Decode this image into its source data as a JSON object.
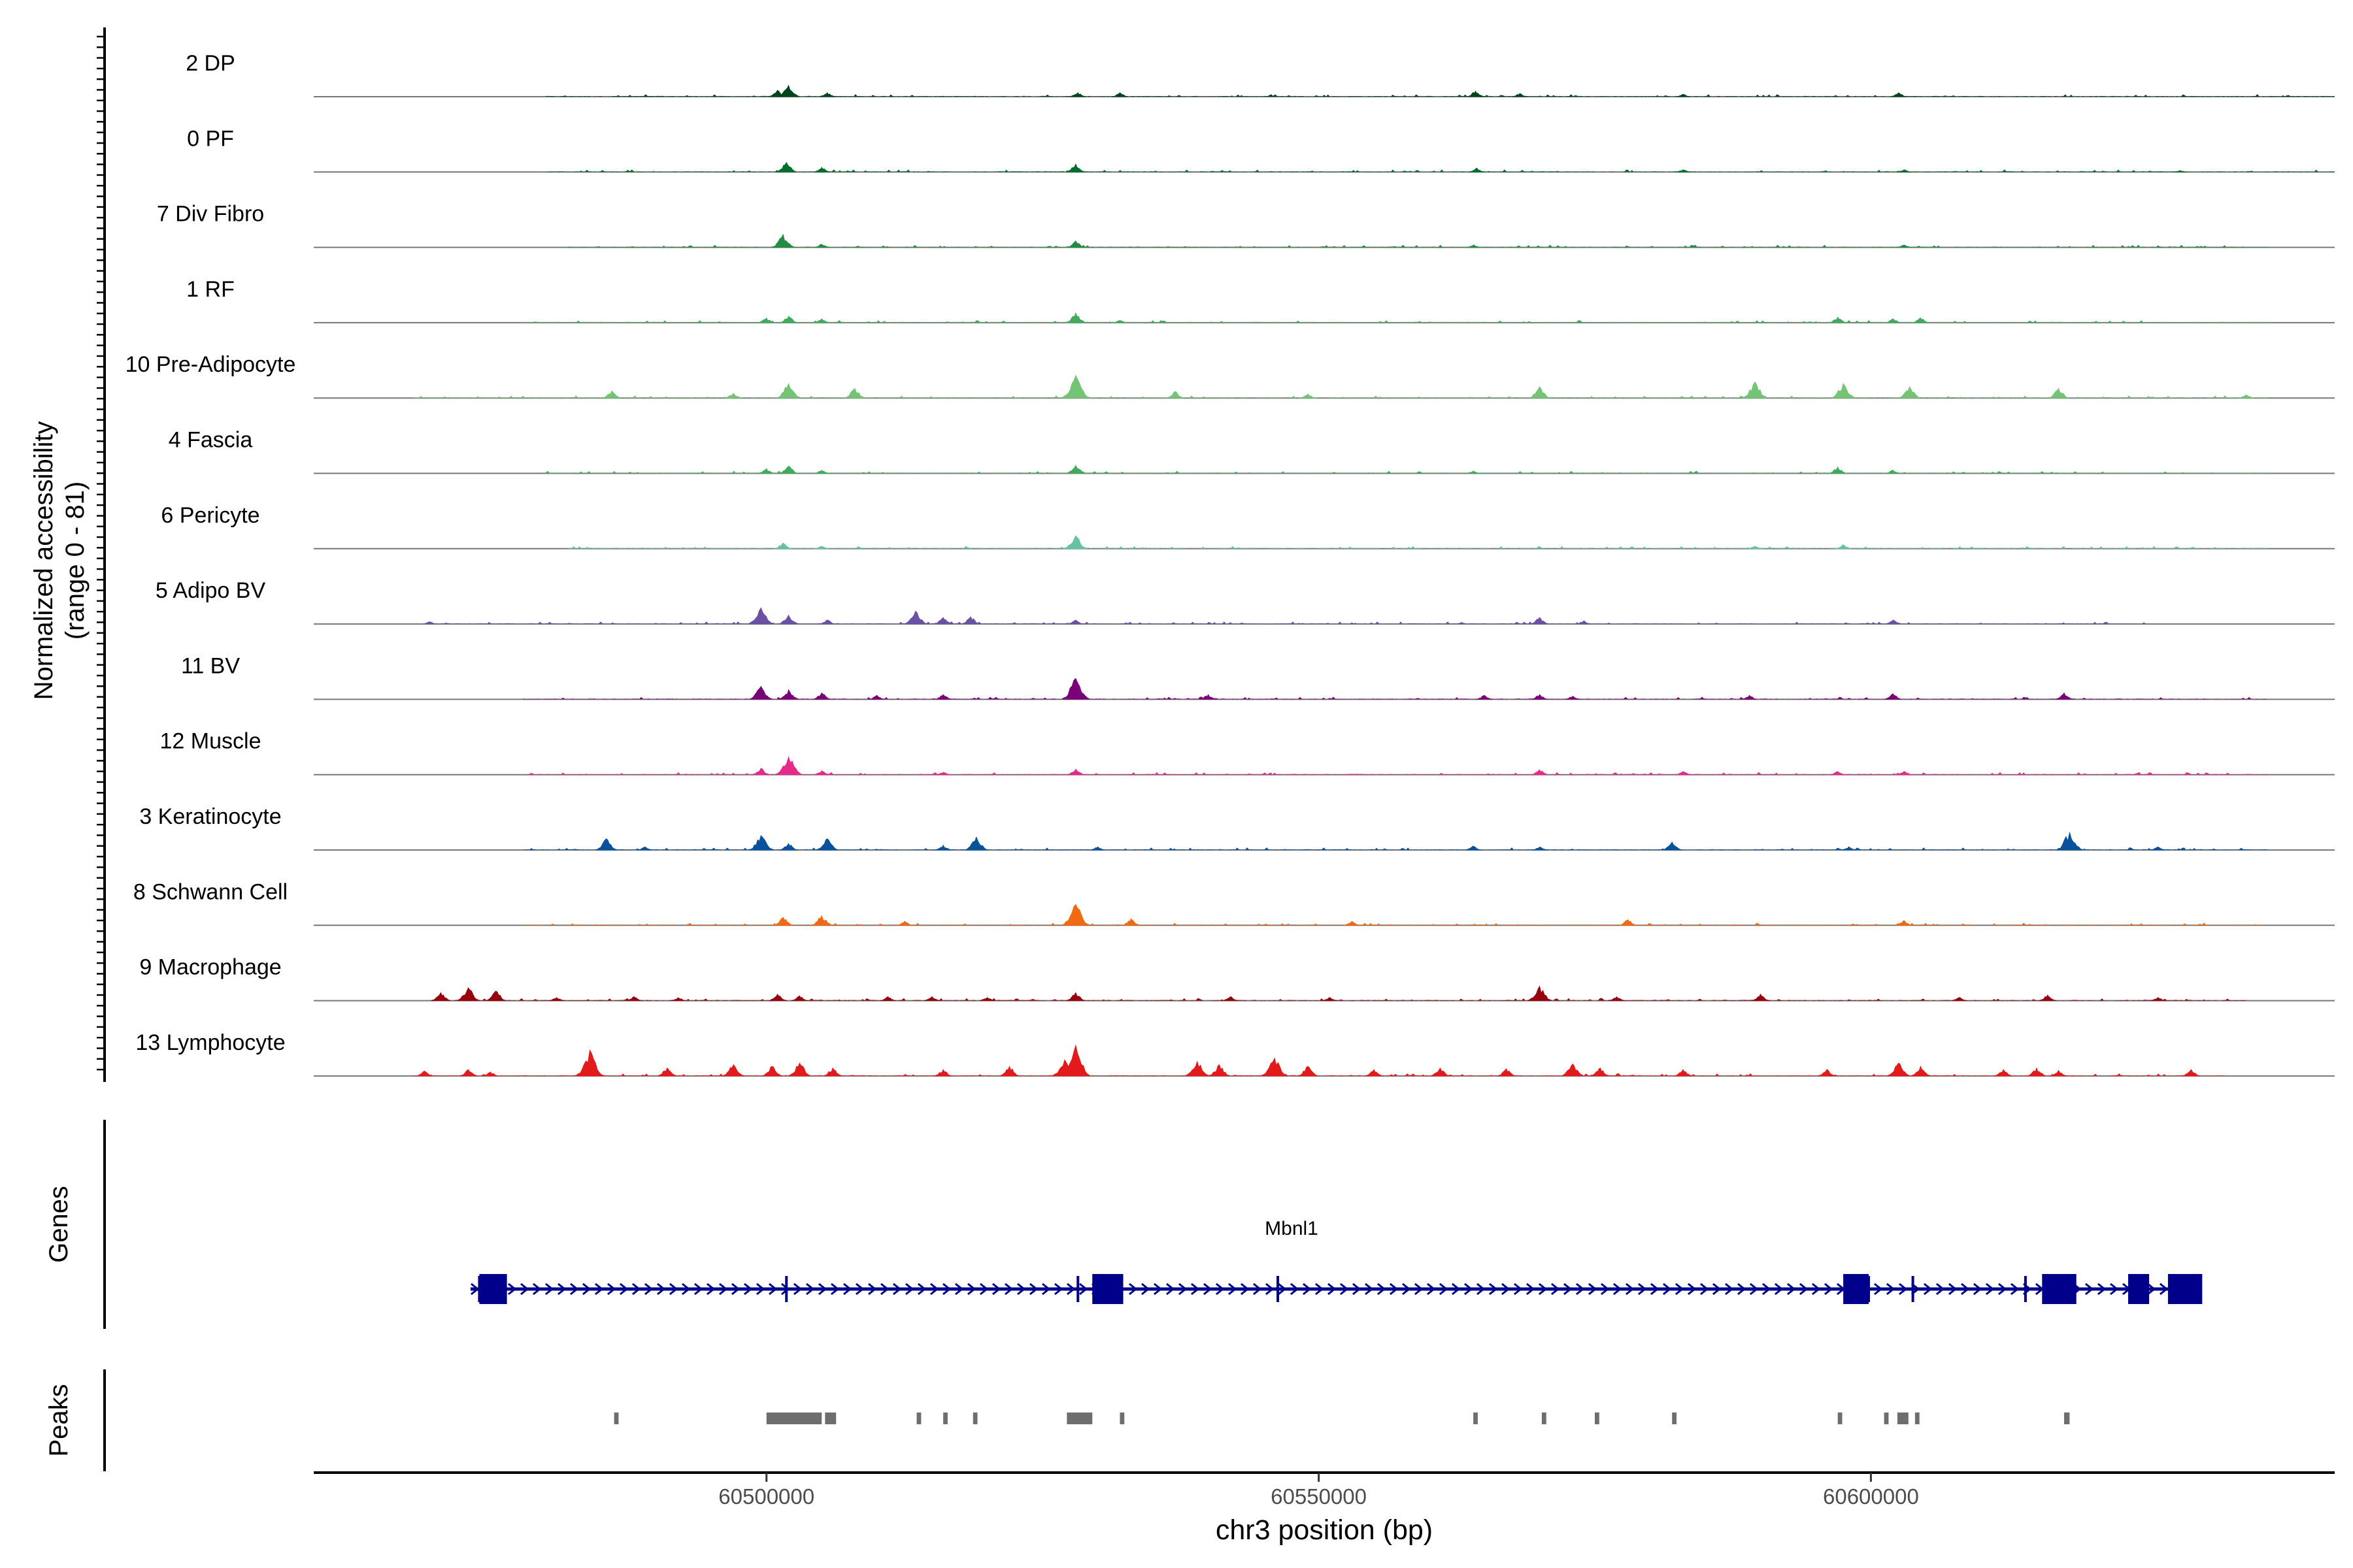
{
  "chart_data": {
    "type": "area",
    "title": "",
    "ylabel_line1": "Normalized accessibility",
    "ylabel_line2": "(range 0 - 81)",
    "xlabel": "chr3 position (bp)",
    "xlim": [
      60459000,
      60642000
    ],
    "x_ticks": [
      60500000,
      60550000,
      60600000
    ],
    "x_tick_labels": [
      "60500000",
      "60550000",
      "60600000"
    ],
    "track_ylim": [
      0,
      81
    ],
    "tracks": [
      {
        "name": "2 DP",
        "color": "#00441b",
        "range": [
          60480000,
          60642000
        ],
        "peaks": [
          [
            60502000,
            14
          ],
          [
            60501000,
            8
          ],
          [
            60505500,
            5
          ],
          [
            60528200,
            5
          ],
          [
            60532000,
            5
          ],
          [
            60564200,
            7
          ],
          [
            60568200,
            4
          ],
          [
            60583000,
            3
          ],
          [
            60602500,
            5
          ]
        ]
      },
      {
        "name": "0 PF",
        "color": "#006d2c",
        "range": [
          60480000,
          60642000
        ],
        "peaks": [
          [
            60501800,
            12
          ],
          [
            60505000,
            6
          ],
          [
            60528000,
            10
          ],
          [
            60564300,
            5
          ],
          [
            60583000,
            3
          ],
          [
            60603000,
            3
          ],
          [
            60628000,
            2
          ]
        ]
      },
      {
        "name": "7 Div Fibro",
        "color": "#238b45",
        "range": [
          60482000,
          60636000
        ],
        "peaks": [
          [
            60501500,
            16
          ],
          [
            60505000,
            4
          ],
          [
            60528000,
            8
          ],
          [
            60564000,
            3
          ],
          [
            60603000,
            3
          ]
        ]
      },
      {
        "name": "1 RF",
        "color": "#41ab5d",
        "range": [
          60478000,
          60636000
        ],
        "peaks": [
          [
            60500000,
            6
          ],
          [
            60502000,
            8
          ],
          [
            60505000,
            5
          ],
          [
            60528000,
            12
          ],
          [
            60532000,
            3
          ],
          [
            60597000,
            7
          ],
          [
            60602000,
            5
          ],
          [
            60604500,
            6
          ]
        ]
      },
      {
        "name": "10 Pre-Adipocyte",
        "color": "#74c476",
        "range": [
          60468000,
          60636000
        ],
        "peaks": [
          [
            60486000,
            9
          ],
          [
            60497000,
            6
          ],
          [
            60502000,
            18
          ],
          [
            60508000,
            12
          ],
          [
            60528000,
            28
          ],
          [
            60537000,
            8
          ],
          [
            60549000,
            5
          ],
          [
            60570000,
            14
          ],
          [
            60589500,
            20
          ],
          [
            60597500,
            18
          ],
          [
            60603500,
            14
          ],
          [
            60617000,
            12
          ],
          [
            60634000,
            4
          ]
        ]
      },
      {
        "name": "4 Fascia",
        "color": "#41ab5d",
        "range": [
          60480000,
          60636000
        ],
        "peaks": [
          [
            60500000,
            6
          ],
          [
            60502000,
            9
          ],
          [
            60505000,
            4
          ],
          [
            60528000,
            10
          ],
          [
            60564000,
            3
          ],
          [
            60597000,
            8
          ],
          [
            60602000,
            4
          ]
        ]
      },
      {
        "name": "6 Pericyte",
        "color": "#66c2a4",
        "range": [
          60482000,
          60636000
        ],
        "peaks": [
          [
            60501500,
            7
          ],
          [
            60505000,
            3
          ],
          [
            60528000,
            16
          ],
          [
            60589500,
            3
          ],
          [
            60597500,
            5
          ]
        ]
      },
      {
        "name": "5 Adipo BV",
        "color": "#6a51a3",
        "range": [
          60469000,
          60625000
        ],
        "peaks": [
          [
            60469500,
            3
          ],
          [
            60499500,
            20
          ],
          [
            60502000,
            11
          ],
          [
            60505500,
            5
          ],
          [
            60513500,
            16
          ],
          [
            60516000,
            8
          ],
          [
            60518500,
            9
          ],
          [
            60528000,
            5
          ],
          [
            60570000,
            8
          ],
          [
            60574000,
            4
          ],
          [
            60602000,
            5
          ]
        ]
      },
      {
        "name": "11 BV",
        "color": "#7a0177",
        "range": [
          60478000,
          60636000
        ],
        "peaks": [
          [
            60499500,
            16
          ],
          [
            60502000,
            12
          ],
          [
            60505000,
            8
          ],
          [
            60510000,
            5
          ],
          [
            60516000,
            6
          ],
          [
            60528000,
            26
          ],
          [
            60540000,
            6
          ],
          [
            60565000,
            5
          ],
          [
            60570000,
            6
          ],
          [
            60573000,
            4
          ],
          [
            60589000,
            5
          ],
          [
            60602000,
            7
          ],
          [
            60617500,
            8
          ]
        ]
      },
      {
        "name": "12 Muscle",
        "color": "#e7298a",
        "range": [
          60478000,
          60636000
        ],
        "peaks": [
          [
            60499500,
            8
          ],
          [
            60502000,
            22
          ],
          [
            60505000,
            5
          ],
          [
            60516000,
            3
          ],
          [
            60528000,
            7
          ],
          [
            60570000,
            6
          ],
          [
            60583000,
            4
          ],
          [
            60597000,
            4
          ],
          [
            60603000,
            4
          ]
        ]
      },
      {
        "name": "3 Keratinocyte",
        "color": "#08519c",
        "range": [
          60478000,
          60636000
        ],
        "peaks": [
          [
            60485500,
            14
          ],
          [
            60489000,
            4
          ],
          [
            60499500,
            18
          ],
          [
            60502000,
            8
          ],
          [
            60505500,
            14
          ],
          [
            60516000,
            6
          ],
          [
            60519000,
            16
          ],
          [
            60530000,
            4
          ],
          [
            60564000,
            5
          ],
          [
            60570000,
            4
          ],
          [
            60582000,
            10
          ],
          [
            60598000,
            4
          ],
          [
            60618000,
            22
          ],
          [
            60626000,
            4
          ]
        ]
      },
      {
        "name": "8 Schwann Cell",
        "color": "#f16913",
        "range": [
          60478000,
          60636000
        ],
        "peaks": [
          [
            60501500,
            10
          ],
          [
            60505000,
            12
          ],
          [
            60512500,
            5
          ],
          [
            60528000,
            26
          ],
          [
            60533000,
            8
          ],
          [
            60553000,
            5
          ],
          [
            60578000,
            7
          ],
          [
            60603000,
            6
          ]
        ]
      },
      {
        "name": "9 Macrophage",
        "color": "#99000d",
        "range": [
          60470000,
          60634000
        ],
        "peaks": [
          [
            60470500,
            10
          ],
          [
            60473000,
            16
          ],
          [
            60475500,
            12
          ],
          [
            60481000,
            4
          ],
          [
            60488000,
            5
          ],
          [
            60492000,
            4
          ],
          [
            60501000,
            8
          ],
          [
            60503000,
            6
          ],
          [
            60511000,
            5
          ],
          [
            60515000,
            5
          ],
          [
            60520000,
            4
          ],
          [
            60528000,
            10
          ],
          [
            60542000,
            5
          ],
          [
            60551000,
            4
          ],
          [
            60570000,
            18
          ],
          [
            60577000,
            5
          ],
          [
            60590000,
            8
          ],
          [
            60608000,
            4
          ],
          [
            60616000,
            7
          ],
          [
            60626000,
            4
          ]
        ]
      },
      {
        "name": "13 Lymphocyte",
        "color": "#e31a1c",
        "range": [
          60468000,
          60632000
        ],
        "peaks": [
          [
            60469000,
            6
          ],
          [
            60473000,
            8
          ],
          [
            60475000,
            5
          ],
          [
            60484000,
            32
          ],
          [
            60491000,
            10
          ],
          [
            60497000,
            14
          ],
          [
            60500500,
            12
          ],
          [
            60503000,
            16
          ],
          [
            60506000,
            10
          ],
          [
            60516000,
            8
          ],
          [
            60522000,
            12
          ],
          [
            60527000,
            20
          ],
          [
            60528000,
            38
          ],
          [
            60539000,
            18
          ],
          [
            60541000,
            14
          ],
          [
            60546000,
            22
          ],
          [
            60549000,
            12
          ],
          [
            60555000,
            8
          ],
          [
            60561000,
            10
          ],
          [
            60567000,
            9
          ],
          [
            60573000,
            15
          ],
          [
            60575500,
            10
          ],
          [
            60583000,
            8
          ],
          [
            60596000,
            8
          ],
          [
            60602500,
            16
          ],
          [
            60604500,
            12
          ],
          [
            60612000,
            8
          ],
          [
            60615000,
            10
          ],
          [
            60617000,
            7
          ],
          [
            60629000,
            8
          ]
        ]
      }
    ],
    "genes_label": "Genes",
    "gene": {
      "name": "Mbnl1",
      "start": 60473200,
      "end": 60629800,
      "exons": [
        [
          60474000,
          60476500
        ],
        [
          60529500,
          60532300
        ],
        [
          60597500,
          60599800
        ],
        [
          60615500,
          60618600
        ],
        [
          60623300,
          60625200
        ],
        [
          60626900,
          60630000
        ]
      ],
      "thin_marks": [
        60474000,
        60501800,
        60528200,
        60546300,
        60599800,
        60603800,
        60614000
      ]
    },
    "peaks_label": "Peaks",
    "peak_regions": [
      [
        60486200,
        60486600
      ],
      [
        60500000,
        60505000
      ],
      [
        60505300,
        60506300
      ],
      [
        60513600,
        60514000
      ],
      [
        60516000,
        60516400
      ],
      [
        60518700,
        60519100
      ],
      [
        60527200,
        60529500
      ],
      [
        60532000,
        60532400
      ],
      [
        60564000,
        60564400
      ],
      [
        60570200,
        60570600
      ],
      [
        60575000,
        60575400
      ],
      [
        60582000,
        60582400
      ],
      [
        60597000,
        60597400
      ],
      [
        60601200,
        60601600
      ],
      [
        60602400,
        60603400
      ],
      [
        60604000,
        60604400
      ],
      [
        60617500,
        60618000
      ]
    ]
  }
}
